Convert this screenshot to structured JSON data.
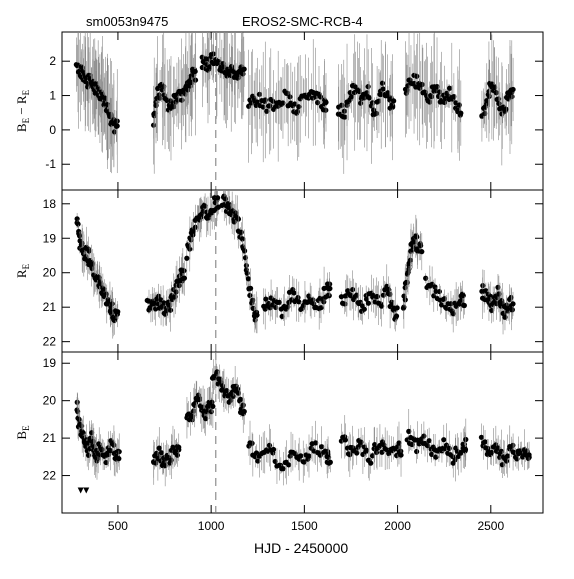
{
  "header": {
    "object_id": "sm0053n9475",
    "survey_title": "EROS2-SMC-RCB-4"
  },
  "x_axis": {
    "label": "HJD - 2450000",
    "ticks": [
      "500",
      "1000",
      "1500",
      "2000",
      "2500"
    ]
  },
  "panels": [
    {
      "ylabel_main": "B",
      "ylabel_sub": "E",
      "ylabel_mid": " − ",
      "ylabel_main2": "R",
      "ylabel_sub2": "E",
      "ticks": [
        "2",
        "1",
        "0",
        "-1"
      ]
    },
    {
      "ylabel_main": "R",
      "ylabel_sub": "E",
      "ticks": [
        "18",
        "19",
        "20",
        "21",
        "22"
      ]
    },
    {
      "ylabel_main": "B",
      "ylabel_sub": "E",
      "ticks": [
        "19",
        "20",
        "21",
        "22"
      ]
    }
  ],
  "chart_data": [
    {
      "type": "scatter",
      "title": "EROS2-SMC-RCB-4",
      "xlabel": "HJD - 2450000",
      "ylabel": "B_E - R_E",
      "xlim": [
        200,
        2780
      ],
      "ylim": [
        -1.75,
        2.85
      ],
      "y_inverted": false,
      "grid": false,
      "vertical_dashed_line_x": 1025,
      "segments": [
        {
          "x": [
            280,
            300,
            320,
            340,
            360,
            380,
            400,
            420,
            440,
            460,
            480
          ],
          "y": [
            1.8,
            1.7,
            1.6,
            1.4,
            1.5,
            1.2,
            1.1,
            0.9,
            0.7,
            0.4,
            0.1
          ]
        },
        {
          "x": [
            690,
            710,
            740,
            770,
            800,
            830,
            860,
            880,
            900
          ],
          "y": [
            0.2,
            1.0,
            1.2,
            0.7,
            0.8,
            1.0,
            1.1,
            1.3,
            1.6
          ]
        },
        {
          "x": [
            950,
            985,
            1010,
            1050,
            1080,
            1110,
            1140,
            1160
          ],
          "y": [
            2.0,
            1.9,
            2.1,
            1.8,
            1.75,
            1.7,
            1.6,
            1.8
          ]
        },
        {
          "x": [
            1200,
            1250,
            1300,
            1350,
            1400,
            1450,
            1500,
            1550,
            1600
          ],
          "y": [
            0.8,
            0.9,
            0.7,
            0.8,
            1.0,
            0.6,
            0.9,
            1.1,
            0.7
          ]
        },
        {
          "x": [
            1680,
            1720,
            1760,
            1800,
            1840,
            1880,
            1920,
            1960
          ],
          "y": [
            0.6,
            0.5,
            1.2,
            0.9,
            1.1,
            0.4,
            1.3,
            0.8
          ]
        },
        {
          "x": [
            2040,
            2080,
            2120,
            2160,
            2200,
            2240,
            2280,
            2320
          ],
          "y": [
            1.0,
            1.5,
            1.3,
            0.9,
            1.2,
            0.8,
            1.1,
            0.6
          ]
        },
        {
          "x": [
            2450,
            2480,
            2510,
            2540,
            2570,
            2600
          ],
          "y": [
            0.3,
            0.9,
            1.4,
            0.8,
            0.5,
            1.1
          ]
        }
      ]
    },
    {
      "type": "scatter",
      "xlabel": "HJD - 2450000",
      "ylabel": "R_E",
      "xlim": [
        200,
        2780
      ],
      "ylim": [
        17.6,
        22.3
      ],
      "y_inverted": true,
      "grid": false,
      "vertical_dashed_line_x": 1025,
      "segments": [
        {
          "x": [
            280,
            300,
            320,
            340,
            360,
            380,
            400,
            420,
            440,
            460,
            480
          ],
          "y": [
            18.5,
            19.2,
            19.4,
            19.5,
            19.8,
            20.1,
            20.3,
            20.5,
            20.8,
            21.0,
            21.2
          ]
        },
        {
          "x": [
            660,
            690,
            720,
            750,
            780,
            810,
            840
          ],
          "y": [
            20.9,
            21.0,
            20.8,
            21.1,
            20.9,
            20.5,
            20.1
          ]
        },
        {
          "x": [
            870,
            900,
            930,
            960,
            990,
            1020
          ],
          "y": [
            19.4,
            18.8,
            18.5,
            18.2,
            18.4,
            18.0
          ]
        },
        {
          "x": [
            1060,
            1090,
            1110,
            1140,
            1170,
            1200,
            1230
          ],
          "y": [
            17.9,
            18.1,
            18.2,
            18.5,
            19.2,
            20.2,
            21.2
          ]
        },
        {
          "x": [
            1280,
            1330,
            1380,
            1430,
            1480,
            1530,
            1580,
            1620
          ],
          "y": [
            21.0,
            20.8,
            21.1,
            20.6,
            20.9,
            20.7,
            21.0,
            20.5
          ]
        },
        {
          "x": [
            1700,
            1750,
            1800,
            1850,
            1900,
            1950,
            1980
          ],
          "y": [
            20.8,
            20.6,
            21.0,
            20.7,
            20.9,
            20.5,
            21.2
          ]
        },
        {
          "x": [
            2030,
            2050,
            2070,
            2090,
            2110
          ],
          "y": [
            21.0,
            20.2,
            19.4,
            18.9,
            19.3
          ]
        },
        {
          "x": [
            2150,
            2200,
            2250,
            2300,
            2340
          ],
          "y": [
            20.2,
            20.6,
            20.9,
            21.1,
            20.8
          ]
        },
        {
          "x": [
            2450,
            2480,
            2510,
            2540,
            2570,
            2600
          ],
          "y": [
            20.5,
            20.7,
            21.0,
            20.6,
            21.2,
            20.9
          ]
        }
      ]
    },
    {
      "type": "scatter",
      "xlabel": "HJD - 2450000",
      "ylabel": "B_E",
      "xlim": [
        200,
        2780
      ],
      "ylim": [
        18.7,
        23.0
      ],
      "y_inverted": true,
      "grid": false,
      "vertical_dashed_line_x": 1025,
      "segments": [
        {
          "x": [
            280,
            300,
            320,
            340,
            360,
            380,
            400,
            430,
            460,
            490
          ],
          "y": [
            20.2,
            20.8,
            21.0,
            21.3,
            21.0,
            21.5,
            21.3,
            21.6,
            21.2,
            21.4
          ]
        },
        {
          "x": [
            690,
            720,
            750,
            780,
            810
          ],
          "y": [
            21.6,
            21.4,
            21.7,
            21.5,
            21.3
          ]
        },
        {
          "x": [
            870,
            900,
            930,
            960,
            990
          ],
          "y": [
            20.6,
            20.3,
            20.0,
            20.4,
            20.2
          ]
        },
        {
          "x": [
            1010,
            1040,
            1070,
            1100,
            1130,
            1160
          ],
          "y": [
            19.3,
            19.4,
            19.7,
            19.9,
            19.6,
            20.2
          ]
        },
        {
          "x": [
            1200,
            1260,
            1320,
            1380,
            1440,
            1500,
            1560,
            1620
          ],
          "y": [
            21.2,
            21.5,
            21.3,
            21.8,
            21.4,
            21.6,
            21.2,
            21.5
          ]
        },
        {
          "x": [
            1700,
            1750,
            1800,
            1850,
            1900,
            1950,
            2000
          ],
          "y": [
            21.0,
            21.4,
            21.2,
            21.6,
            21.1,
            21.5,
            21.3
          ]
        },
        {
          "x": [
            2050,
            2100,
            2150,
            2200,
            2250,
            2300,
            2350
          ],
          "y": [
            20.9,
            21.2,
            21.0,
            21.4,
            21.1,
            21.5,
            21.2
          ]
        },
        {
          "x": [
            2450,
            2490,
            2530,
            2570,
            2610,
            2650,
            2690
          ],
          "y": [
            21.1,
            21.4,
            21.2,
            21.6,
            21.3,
            21.5,
            21.4
          ]
        }
      ],
      "upper_limits": {
        "x": [
          300,
          330
        ],
        "y": [
          22.4,
          22.4
        ]
      }
    }
  ]
}
